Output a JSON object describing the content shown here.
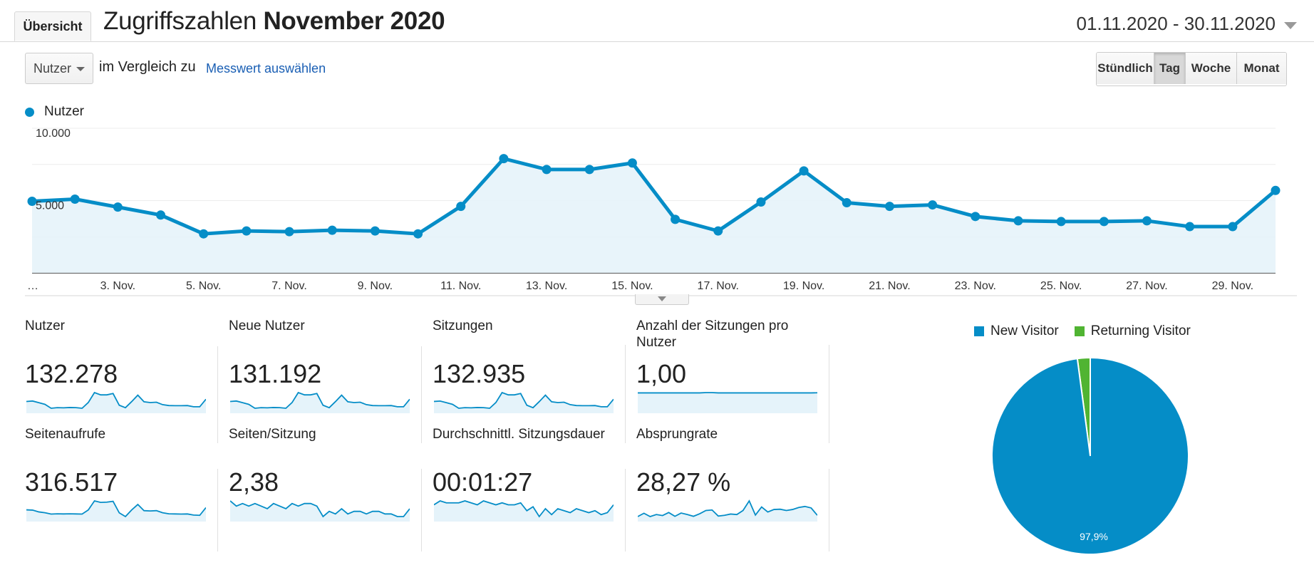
{
  "header": {
    "tab_label": "Übersicht",
    "title_prefix": "Zugriffszahlen",
    "title_bold": "November 2020",
    "date_range": "01.11.2020 - 30.11.2020"
  },
  "controls": {
    "metric_select": "Nutzer",
    "compare_text": "im Vergleich zu",
    "compare_link": "Messwert auswählen",
    "granularity": [
      "Stündlich",
      "Tag",
      "Woche",
      "Monat"
    ],
    "granularity_active": "Tag"
  },
  "colors": {
    "accent": "#058dc7",
    "fill": "#e5f3fa",
    "returning": "#50b432"
  },
  "chart_data": {
    "type": "area",
    "series": [
      {
        "name": "Nutzer",
        "values": [
          4950,
          5100,
          4550,
          4000,
          2700,
          2900,
          2850,
          2950,
          2900,
          2700,
          4600,
          7900,
          7150,
          7150,
          7600,
          3700,
          2900,
          4900,
          7050,
          4850,
          4600,
          4700,
          3900,
          3600,
          3550,
          3550,
          3600,
          3200,
          3200,
          5700
        ]
      }
    ],
    "x_labels": [
      "…",
      "3. Nov.",
      "5. Nov.",
      "7. Nov.",
      "9. Nov.",
      "11. Nov.",
      "13. Nov.",
      "15. Nov.",
      "17. Nov.",
      "19. Nov.",
      "21. Nov.",
      "23. Nov.",
      "25. Nov.",
      "27. Nov.",
      "29. Nov."
    ],
    "y_labels": [
      "10.000",
      "5.000"
    ],
    "ylim": [
      0,
      10000
    ],
    "grid": true,
    "legend": "top-left"
  },
  "metrics": [
    {
      "label": "Nutzer",
      "value": "132.278",
      "spark": [
        4950,
        5100,
        4550,
        4000,
        2700,
        2900,
        2850,
        2950,
        2900,
        2700,
        4600,
        7900,
        7150,
        7150,
        7600,
        3700,
        2900,
        4900,
        7050,
        4850,
        4600,
        4700,
        3900,
        3600,
        3550,
        3550,
        3600,
        3200,
        3200,
        5700
      ]
    },
    {
      "label": "Neue Nutzer",
      "value": "131.192",
      "spark": [
        4900,
        5050,
        4500,
        3950,
        2650,
        2850,
        2800,
        2900,
        2850,
        2650,
        4550,
        7850,
        7100,
        7100,
        7550,
        3650,
        2850,
        4850,
        7000,
        4800,
        4550,
        4650,
        3850,
        3550,
        3500,
        3500,
        3550,
        3150,
        3150,
        5650
      ]
    },
    {
      "label": "Sitzungen",
      "value": "132.935",
      "spark": [
        4980,
        5120,
        4580,
        4020,
        2720,
        2920,
        2870,
        2970,
        2920,
        2720,
        4620,
        7920,
        7170,
        7170,
        7620,
        3720,
        2920,
        4920,
        7070,
        4870,
        4620,
        4720,
        3920,
        3620,
        3570,
        3570,
        3620,
        3220,
        3220,
        5720
      ]
    },
    {
      "label": "Anzahl der Sitzungen pro Nutzer",
      "value": "1,00",
      "spark": [
        5,
        5,
        5,
        5,
        5,
        5,
        5,
        5,
        5,
        5,
        5,
        5.05,
        5.05,
        5,
        5,
        5,
        5,
        5,
        5,
        5,
        5,
        5,
        5,
        5,
        5,
        5,
        5,
        5,
        5,
        5.02
      ]
    },
    {
      "label": "Seitenaufrufe",
      "value": "316.517",
      "spark": [
        12000,
        11800,
        10500,
        9900,
        8900,
        9100,
        9000,
        9100,
        9000,
        8900,
        11900,
        18500,
        17400,
        17600,
        18200,
        9800,
        7100,
        11900,
        15900,
        11400,
        11200,
        11400,
        9900,
        9100,
        9000,
        8900,
        9000,
        8200,
        8000,
        13600
      ]
    },
    {
      "label": "Seiten/Sitzung",
      "value": "2,38",
      "spark": [
        2.42,
        2.4,
        2.41,
        2.4,
        2.41,
        2.4,
        2.39,
        2.41,
        2.4,
        2.39,
        2.41,
        2.4,
        2.41,
        2.41,
        2.4,
        2.36,
        2.38,
        2.37,
        2.39,
        2.37,
        2.38,
        2.38,
        2.37,
        2.38,
        2.38,
        2.37,
        2.37,
        2.36,
        2.36,
        2.39
      ]
    },
    {
      "label": "Durchschnittl. Sitzungsdauer",
      "value": "00:01:27",
      "spark": [
        88,
        90,
        89,
        89,
        89,
        90,
        89,
        88,
        90,
        89,
        88,
        89,
        88,
        88,
        89,
        85,
        87,
        82,
        86,
        83,
        86,
        85,
        84,
        86,
        85,
        84,
        85,
        83,
        84,
        88
      ]
    },
    {
      "label": "Absprungrate",
      "value": "28,27 %",
      "spark": [
        26.0,
        27.3,
        26.0,
        26.8,
        26.4,
        27.6,
        26.1,
        27.4,
        26.8,
        26.1,
        27.1,
        28.4,
        28.6,
        26.2,
        26.5,
        27.0,
        26.8,
        28.4,
        32.2,
        26.6,
        29.8,
        27.8,
        28.8,
        28.9,
        28.4,
        28.8,
        29.6,
        30.0,
        29.4,
        26.5
      ]
    }
  ],
  "pie": {
    "legend": [
      "New Visitor",
      "Returning Visitor"
    ],
    "values": [
      97.9,
      2.1
    ],
    "label": "97,9%"
  }
}
